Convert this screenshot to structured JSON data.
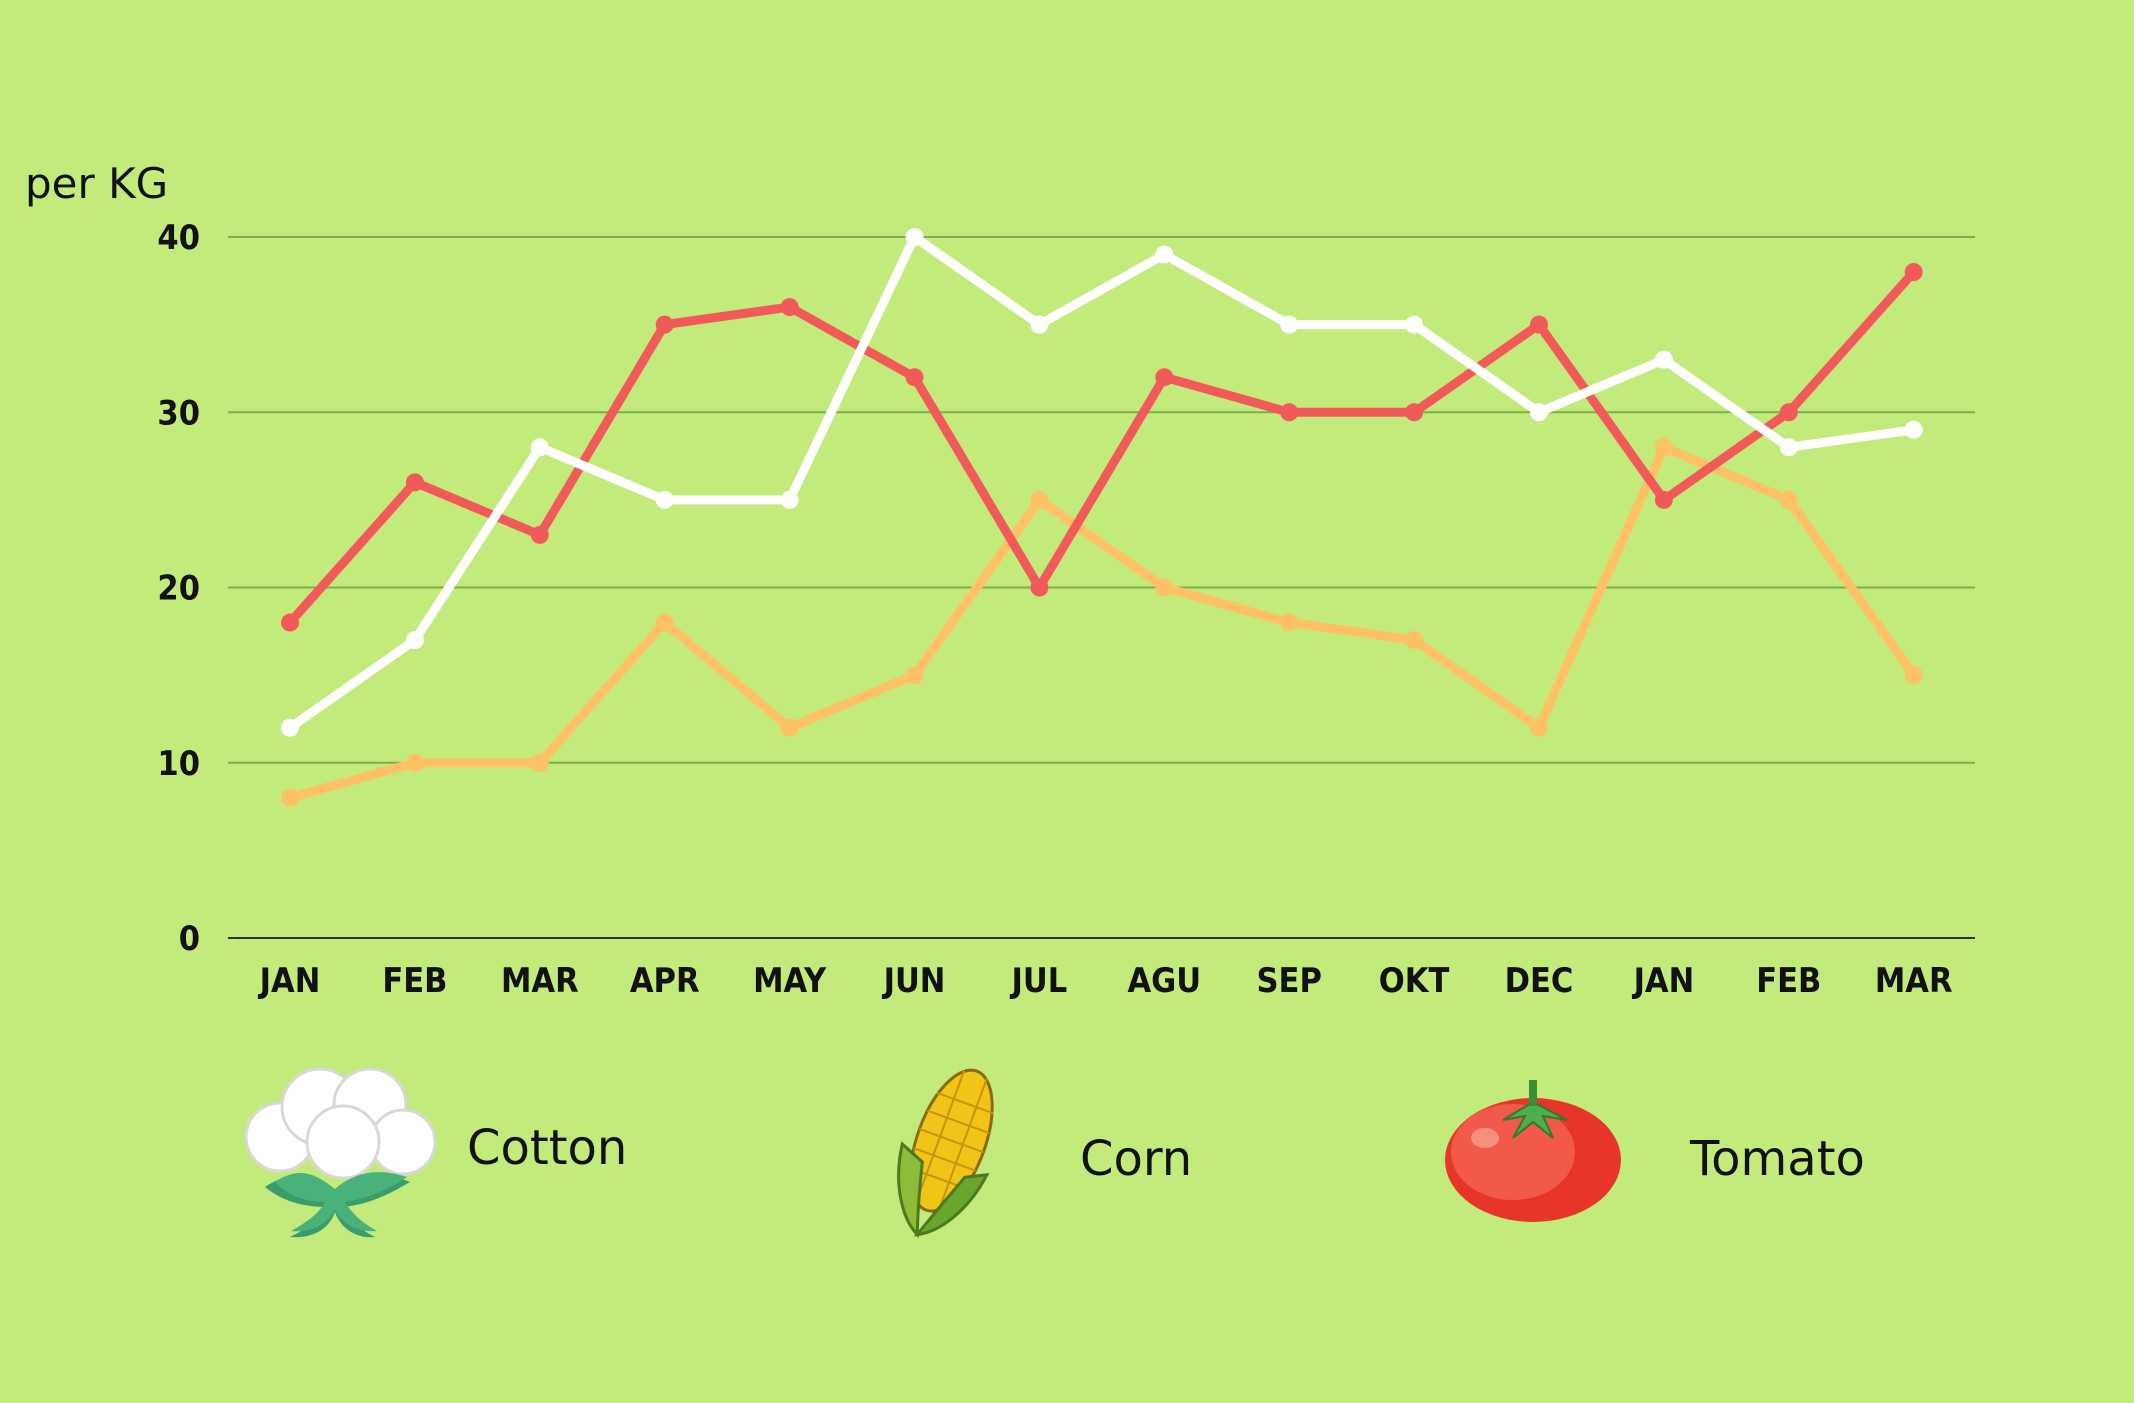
{
  "chart_data": {
    "type": "line",
    "ylabel": "per KG",
    "xlabel": "",
    "ylim": [
      0,
      40
    ],
    "yticks": [
      0,
      10,
      20,
      30,
      40
    ],
    "grid": true,
    "categories": [
      "JAN",
      "FEB",
      "MAR",
      "APR",
      "MAY",
      "JUN",
      "JUL",
      "AGU",
      "SEP",
      "OKT",
      "DEC",
      "JAN",
      "FEB",
      "MAR"
    ],
    "legend_position": "bottom",
    "series": [
      {
        "name": "Cotton",
        "color": "#ffffff",
        "icon": "cotton-icon",
        "values": [
          12,
          17,
          28,
          25,
          25,
          40,
          35,
          39,
          35,
          35,
          30,
          33,
          28,
          29
        ]
      },
      {
        "name": "Corn",
        "color": "#ffc066",
        "icon": "corn-icon",
        "values": [
          8,
          10,
          10,
          18,
          12,
          15,
          25,
          20,
          18,
          17,
          12,
          28,
          25,
          15
        ]
      },
      {
        "name": "Tomato",
        "color": "#f25a5a",
        "icon": "tomato-icon",
        "values": [
          18,
          26,
          23,
          35,
          36,
          32,
          20,
          32,
          30,
          30,
          35,
          25,
          30,
          38
        ]
      }
    ]
  }
}
